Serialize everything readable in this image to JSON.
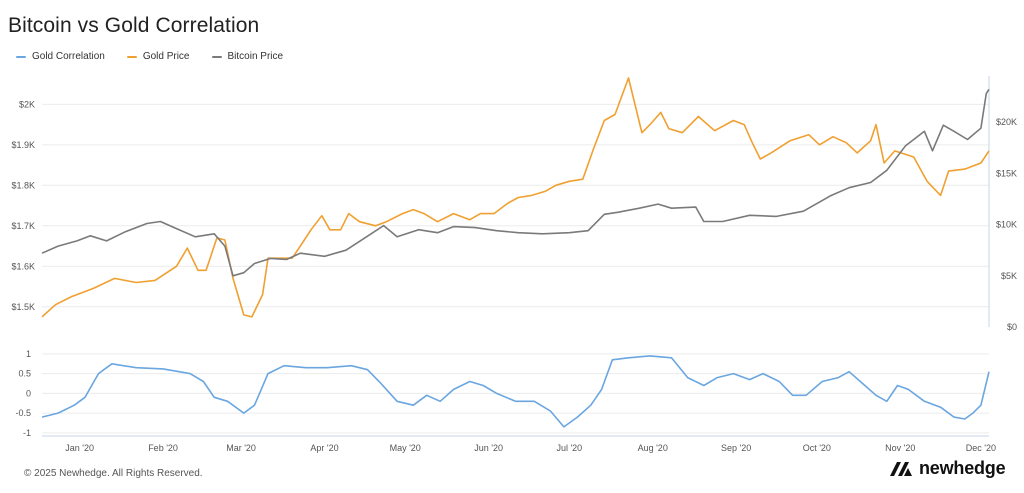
{
  "page": {
    "title": "Bitcoin vs Gold Correlation",
    "copyright": "© 2025 Newhedge. All Rights Reserved.",
    "brand": "newhedge"
  },
  "legend": [
    {
      "label": "Gold Correlation",
      "color": "#6aa6e0"
    },
    {
      "label": "Gold Price",
      "color": "#f0a030"
    },
    {
      "label": "Bitcoin Price",
      "color": "#7a7a7a"
    }
  ],
  "colors": {
    "correlation": "#6aa6e0",
    "gold": "#f0a030",
    "bitcoin": "#7a7a7a",
    "grid": "#ececec",
    "axis": "#c8d4ea"
  },
  "chart_data": {
    "type": "line",
    "title": "Bitcoin vs Gold Correlation",
    "x_range": [
      "2020-01-01",
      "2020-12-18"
    ],
    "x_ticks": [
      {
        "label": "Jan '20",
        "date": "2020-01-15"
      },
      {
        "label": "Feb '20",
        "date": "2020-02-15"
      },
      {
        "label": "Mar '20",
        "date": "2020-03-15"
      },
      {
        "label": "Apr '20",
        "date": "2020-04-15"
      },
      {
        "label": "May '20",
        "date": "2020-05-15"
      },
      {
        "label": "Jun '20",
        "date": "2020-06-15"
      },
      {
        "label": "Jul '20",
        "date": "2020-07-15"
      },
      {
        "label": "Aug '20",
        "date": "2020-08-15"
      },
      {
        "label": "Sep '20",
        "date": "2020-09-15"
      },
      {
        "label": "Oct '20",
        "date": "2020-10-15"
      },
      {
        "label": "Nov '20",
        "date": "2020-11-15"
      },
      {
        "label": "Dec '20",
        "date": "2020-12-15"
      }
    ],
    "y_left": {
      "ticks": [
        {
          "v": 1500,
          "label": "$1.5K"
        },
        {
          "v": 1600,
          "label": "$1.6K"
        },
        {
          "v": 1700,
          "label": "$1.7K"
        },
        {
          "v": 1800,
          "label": "$1.8K"
        },
        {
          "v": 1900,
          "label": "$1.9K"
        },
        {
          "v": 2000,
          "label": "$2K"
        }
      ],
      "range": [
        1450,
        2070
      ]
    },
    "y_right": {
      "ticks": [
        {
          "v": 0,
          "label": "$0"
        },
        {
          "v": 5000,
          "label": "$5K"
        },
        {
          "v": 10000,
          "label": "$10K"
        },
        {
          "v": 15000,
          "label": "$15K"
        },
        {
          "v": 20000,
          "label": "$20K"
        }
      ],
      "range": [
        0,
        24500
      ]
    },
    "y_corr": {
      "ticks": [
        {
          "v": 1,
          "label": "1"
        },
        {
          "v": 0.5,
          "label": "0.5"
        },
        {
          "v": 0,
          "label": "0"
        },
        {
          "v": -0.5,
          "label": "-0.5"
        },
        {
          "v": -1,
          "label": "-1"
        }
      ],
      "range": [
        -1.08,
        1.2
      ]
    },
    "series": [
      {
        "name": "Gold Price",
        "axis": "left",
        "key": "gold",
        "points": [
          [
            "2020-01-01",
            1475
          ],
          [
            "2020-01-06",
            1505
          ],
          [
            "2020-01-12",
            1525
          ],
          [
            "2020-01-20",
            1545
          ],
          [
            "2020-01-28",
            1570
          ],
          [
            "2020-02-05",
            1560
          ],
          [
            "2020-02-12",
            1565
          ],
          [
            "2020-02-20",
            1600
          ],
          [
            "2020-02-24",
            1645
          ],
          [
            "2020-02-28",
            1590
          ],
          [
            "2020-03-02",
            1590
          ],
          [
            "2020-03-06",
            1670
          ],
          [
            "2020-03-09",
            1665
          ],
          [
            "2020-03-12",
            1570
          ],
          [
            "2020-03-16",
            1480
          ],
          [
            "2020-03-19",
            1475
          ],
          [
            "2020-03-23",
            1530
          ],
          [
            "2020-03-25",
            1620
          ],
          [
            "2020-03-30",
            1620
          ],
          [
            "2020-04-03",
            1620
          ],
          [
            "2020-04-07",
            1660
          ],
          [
            "2020-04-10",
            1690
          ],
          [
            "2020-04-14",
            1725
          ],
          [
            "2020-04-17",
            1690
          ],
          [
            "2020-04-21",
            1690
          ],
          [
            "2020-04-24",
            1730
          ],
          [
            "2020-04-28",
            1710
          ],
          [
            "2020-05-04",
            1700
          ],
          [
            "2020-05-08",
            1710
          ],
          [
            "2020-05-14",
            1730
          ],
          [
            "2020-05-18",
            1740
          ],
          [
            "2020-05-22",
            1730
          ],
          [
            "2020-05-27",
            1710
          ],
          [
            "2020-06-02",
            1730
          ],
          [
            "2020-06-08",
            1715
          ],
          [
            "2020-06-12",
            1730
          ],
          [
            "2020-06-17",
            1730
          ],
          [
            "2020-06-22",
            1755
          ],
          [
            "2020-06-26",
            1770
          ],
          [
            "2020-07-01",
            1775
          ],
          [
            "2020-07-06",
            1785
          ],
          [
            "2020-07-10",
            1800
          ],
          [
            "2020-07-15",
            1810
          ],
          [
            "2020-07-20",
            1815
          ],
          [
            "2020-07-24",
            1890
          ],
          [
            "2020-07-28",
            1960
          ],
          [
            "2020-08-01",
            1975
          ],
          [
            "2020-08-06",
            2065
          ],
          [
            "2020-08-11",
            1930
          ],
          [
            "2020-08-14",
            1950
          ],
          [
            "2020-08-18",
            1980
          ],
          [
            "2020-08-21",
            1940
          ],
          [
            "2020-08-26",
            1930
          ],
          [
            "2020-09-01",
            1970
          ],
          [
            "2020-09-07",
            1935
          ],
          [
            "2020-09-14",
            1960
          ],
          [
            "2020-09-18",
            1950
          ],
          [
            "2020-09-21",
            1905
          ],
          [
            "2020-09-24",
            1865
          ],
          [
            "2020-09-28",
            1880
          ],
          [
            "2020-10-05",
            1910
          ],
          [
            "2020-10-12",
            1925
          ],
          [
            "2020-10-16",
            1900
          ],
          [
            "2020-10-21",
            1920
          ],
          [
            "2020-10-26",
            1905
          ],
          [
            "2020-10-30",
            1880
          ],
          [
            "2020-11-04",
            1910
          ],
          [
            "2020-11-06",
            1950
          ],
          [
            "2020-11-09",
            1855
          ],
          [
            "2020-11-13",
            1885
          ],
          [
            "2020-11-20",
            1870
          ],
          [
            "2020-11-25",
            1810
          ],
          [
            "2020-11-30",
            1775
          ],
          [
            "2020-12-03",
            1835
          ],
          [
            "2020-12-09",
            1840
          ],
          [
            "2020-12-15",
            1855
          ],
          [
            "2020-12-18",
            1885
          ]
        ]
      },
      {
        "name": "Bitcoin Price",
        "axis": "right",
        "key": "bitcoin",
        "points": [
          [
            "2020-01-01",
            7200
          ],
          [
            "2020-01-07",
            7900
          ],
          [
            "2020-01-14",
            8400
          ],
          [
            "2020-01-19",
            8900
          ],
          [
            "2020-01-25",
            8400
          ],
          [
            "2020-02-01",
            9300
          ],
          [
            "2020-02-09",
            10100
          ],
          [
            "2020-02-14",
            10300
          ],
          [
            "2020-02-20",
            9600
          ],
          [
            "2020-02-27",
            8800
          ],
          [
            "2020-03-05",
            9100
          ],
          [
            "2020-03-09",
            7900
          ],
          [
            "2020-03-12",
            5000
          ],
          [
            "2020-03-16",
            5300
          ],
          [
            "2020-03-20",
            6200
          ],
          [
            "2020-03-26",
            6700
          ],
          [
            "2020-04-01",
            6600
          ],
          [
            "2020-04-06",
            7200
          ],
          [
            "2020-04-15",
            6900
          ],
          [
            "2020-04-23",
            7500
          ],
          [
            "2020-04-30",
            8700
          ],
          [
            "2020-05-07",
            9900
          ],
          [
            "2020-05-12",
            8800
          ],
          [
            "2020-05-20",
            9500
          ],
          [
            "2020-05-27",
            9200
          ],
          [
            "2020-06-02",
            9800
          ],
          [
            "2020-06-10",
            9700
          ],
          [
            "2020-06-18",
            9400
          ],
          [
            "2020-06-26",
            9200
          ],
          [
            "2020-07-05",
            9100
          ],
          [
            "2020-07-15",
            9200
          ],
          [
            "2020-07-22",
            9400
          ],
          [
            "2020-07-28",
            11000
          ],
          [
            "2020-08-02",
            11200
          ],
          [
            "2020-08-10",
            11600
          ],
          [
            "2020-08-17",
            12000
          ],
          [
            "2020-08-22",
            11600
          ],
          [
            "2020-08-31",
            11700
          ],
          [
            "2020-09-03",
            10300
          ],
          [
            "2020-09-10",
            10300
          ],
          [
            "2020-09-20",
            10900
          ],
          [
            "2020-09-30",
            10800
          ],
          [
            "2020-10-10",
            11300
          ],
          [
            "2020-10-20",
            12800
          ],
          [
            "2020-10-27",
            13600
          ],
          [
            "2020-11-04",
            14100
          ],
          [
            "2020-11-10",
            15300
          ],
          [
            "2020-11-17",
            17700
          ],
          [
            "2020-11-24",
            19100
          ],
          [
            "2020-11-27",
            17200
          ],
          [
            "2020-12-01",
            19700
          ],
          [
            "2020-12-05",
            19100
          ],
          [
            "2020-12-10",
            18300
          ],
          [
            "2020-12-15",
            19400
          ],
          [
            "2020-12-17",
            22800
          ],
          [
            "2020-12-18",
            23200
          ]
        ]
      },
      {
        "name": "Gold Correlation",
        "axis": "corr",
        "key": "correlation",
        "points": [
          [
            "2020-01-01",
            -0.6
          ],
          [
            "2020-01-07",
            -0.5
          ],
          [
            "2020-01-13",
            -0.3
          ],
          [
            "2020-01-17",
            -0.1
          ],
          [
            "2020-01-22",
            0.5
          ],
          [
            "2020-01-27",
            0.75
          ],
          [
            "2020-02-05",
            0.65
          ],
          [
            "2020-02-15",
            0.62
          ],
          [
            "2020-02-25",
            0.5
          ],
          [
            "2020-03-01",
            0.3
          ],
          [
            "2020-03-05",
            -0.1
          ],
          [
            "2020-03-10",
            -0.2
          ],
          [
            "2020-03-16",
            -0.5
          ],
          [
            "2020-03-20",
            -0.3
          ],
          [
            "2020-03-25",
            0.5
          ],
          [
            "2020-03-31",
            0.7
          ],
          [
            "2020-04-08",
            0.65
          ],
          [
            "2020-04-16",
            0.65
          ],
          [
            "2020-04-25",
            0.7
          ],
          [
            "2020-05-01",
            0.6
          ],
          [
            "2020-05-06",
            0.25
          ],
          [
            "2020-05-12",
            -0.2
          ],
          [
            "2020-05-18",
            -0.3
          ],
          [
            "2020-05-23",
            -0.05
          ],
          [
            "2020-05-28",
            -0.2
          ],
          [
            "2020-06-02",
            0.1
          ],
          [
            "2020-06-08",
            0.3
          ],
          [
            "2020-06-13",
            0.2
          ],
          [
            "2020-06-18",
            0
          ],
          [
            "2020-06-25",
            -0.2
          ],
          [
            "2020-07-02",
            -0.2
          ],
          [
            "2020-07-08",
            -0.45
          ],
          [
            "2020-07-13",
            -0.85
          ],
          [
            "2020-07-18",
            -0.6
          ],
          [
            "2020-07-23",
            -0.3
          ],
          [
            "2020-07-27",
            0.1
          ],
          [
            "2020-07-31",
            0.85
          ],
          [
            "2020-08-06",
            0.9
          ],
          [
            "2020-08-14",
            0.95
          ],
          [
            "2020-08-22",
            0.9
          ],
          [
            "2020-08-28",
            0.4
          ],
          [
            "2020-09-03",
            0.2
          ],
          [
            "2020-09-08",
            0.4
          ],
          [
            "2020-09-14",
            0.5
          ],
          [
            "2020-09-20",
            0.35
          ],
          [
            "2020-09-25",
            0.5
          ],
          [
            "2020-10-01",
            0.3
          ],
          [
            "2020-10-06",
            -0.05
          ],
          [
            "2020-10-11",
            -0.05
          ],
          [
            "2020-10-17",
            0.3
          ],
          [
            "2020-10-23",
            0.4
          ],
          [
            "2020-10-27",
            0.55
          ],
          [
            "2020-11-01",
            0.25
          ],
          [
            "2020-11-06",
            -0.05
          ],
          [
            "2020-11-10",
            -0.2
          ],
          [
            "2020-11-14",
            0.2
          ],
          [
            "2020-11-18",
            0.1
          ],
          [
            "2020-11-24",
            -0.2
          ],
          [
            "2020-11-30",
            -0.35
          ],
          [
            "2020-12-05",
            -0.6
          ],
          [
            "2020-12-09",
            -0.65
          ],
          [
            "2020-12-12",
            -0.5
          ],
          [
            "2020-12-15",
            -0.3
          ],
          [
            "2020-12-18",
            0.55
          ]
        ]
      }
    ]
  }
}
